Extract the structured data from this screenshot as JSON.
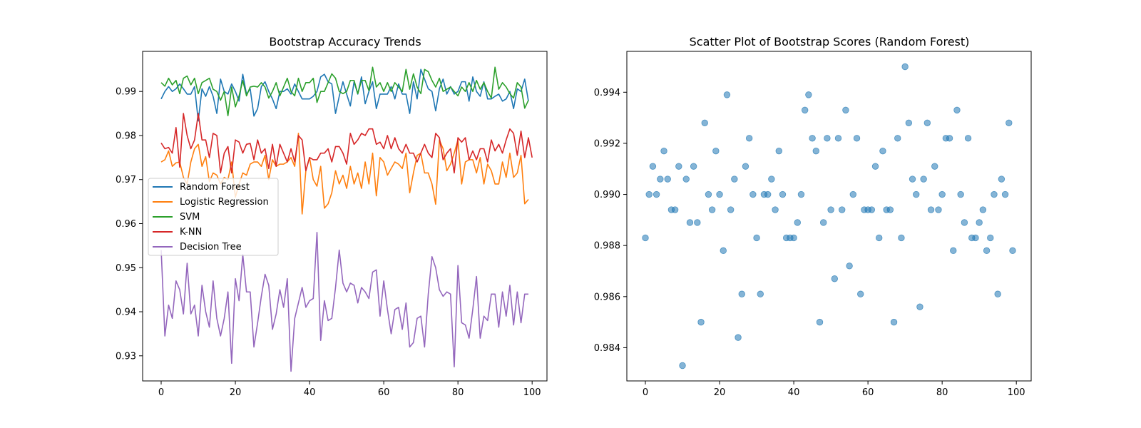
{
  "colors": {
    "Random Forest": "#1f77b4",
    "Logistic Regression": "#ff7f0e",
    "SVM": "#2ca02c",
    "K-NN": "#d62728",
    "Decision Tree": "#9467bd"
  },
  "chart_data": [
    {
      "type": "line",
      "title": "Bootstrap Accuracy Trends",
      "xlabel": "",
      "ylabel": "",
      "xlim": [
        -5,
        104
      ],
      "ylim": [
        0.9243,
        0.9991
      ],
      "xticks": [
        0,
        20,
        40,
        60,
        80,
        100
      ],
      "yticks": [
        0.93,
        0.94,
        0.95,
        0.96,
        0.97,
        0.98,
        0.99
      ],
      "ytick_labels": [
        "0.93",
        "0.94",
        "0.95",
        "0.96",
        "0.97",
        "0.98",
        "0.99"
      ],
      "grid": false,
      "legend": "center-left",
      "series": [
        {
          "name": "Random Forest",
          "values": [
            0.9883,
            0.99,
            0.9911,
            0.99,
            0.9906,
            0.9917,
            0.9906,
            0.9894,
            0.9894,
            0.9911,
            0.9833,
            0.9906,
            0.9889,
            0.9911,
            0.9889,
            0.985,
            0.9928,
            0.99,
            0.9894,
            0.9917,
            0.99,
            0.9878,
            0.9939,
            0.9894,
            0.9906,
            0.9844,
            0.9861,
            0.9911,
            0.9922,
            0.99,
            0.9883,
            0.9861,
            0.99,
            0.99,
            0.9906,
            0.9894,
            0.9917,
            0.99,
            0.9883,
            0.9883,
            0.9883,
            0.9889,
            0.99,
            0.9933,
            0.9939,
            0.9922,
            0.9917,
            0.985,
            0.9889,
            0.9922,
            0.9894,
            0.9867,
            0.9922,
            0.9894,
            0.9933,
            0.9872,
            0.99,
            0.9922,
            0.9861,
            0.9894,
            0.9894,
            0.9894,
            0.9911,
            0.9883,
            0.9917,
            0.9894,
            0.9894,
            0.985,
            0.9922,
            0.9883,
            0.995,
            0.9928,
            0.9906,
            0.99,
            0.9856,
            0.9906,
            0.9928,
            0.9894,
            0.9911,
            0.9894,
            0.99,
            0.9922,
            0.9922,
            0.9878,
            0.9933,
            0.99,
            0.9889,
            0.9922,
            0.9883,
            0.9883,
            0.9889,
            0.9894,
            0.9878,
            0.9883,
            0.99,
            0.9861,
            0.9906,
            0.99,
            0.9928,
            0.9878
          ]
        },
        {
          "name": "Logistic Regression",
          "values": [
            0.974,
            0.9745,
            0.9765,
            0.973,
            0.9738,
            0.974,
            0.9705,
            0.969,
            0.974,
            0.977,
            0.978,
            0.973,
            0.9752,
            0.9695,
            0.9715,
            0.971,
            0.969,
            0.9705,
            0.97,
            0.974,
            0.966,
            0.969,
            0.9715,
            0.971,
            0.9735,
            0.974,
            0.974,
            0.973,
            0.9755,
            0.97,
            0.9745,
            0.973,
            0.9735,
            0.9735,
            0.974,
            0.975,
            0.973,
            0.9805,
            0.9622,
            0.972,
            0.975,
            0.97,
            0.9685,
            0.973,
            0.9635,
            0.9645,
            0.967,
            0.972,
            0.969,
            0.971,
            0.968,
            0.973,
            0.969,
            0.9715,
            0.968,
            0.974,
            0.969,
            0.976,
            0.9663,
            0.975,
            0.974,
            0.971,
            0.9725,
            0.974,
            0.9735,
            0.9725,
            0.976,
            0.967,
            0.9715,
            0.9755,
            0.976,
            0.9715,
            0.9715,
            0.969,
            0.9644,
            0.979,
            0.977,
            0.972,
            0.9735,
            0.976,
            0.979,
            0.969,
            0.974,
            0.9745,
            0.9745,
            0.9715,
            0.975,
            0.969,
            0.9735,
            0.972,
            0.969,
            0.969,
            0.974,
            0.9705,
            0.976,
            0.9705,
            0.9715,
            0.9755,
            0.9645,
            0.9655
          ]
        },
        {
          "name": "SVM",
          "values": [
            0.992,
            0.9912,
            0.993,
            0.9915,
            0.9925,
            0.9895,
            0.993,
            0.9935,
            0.9915,
            0.993,
            0.9895,
            0.992,
            0.9925,
            0.993,
            0.9905,
            0.99,
            0.988,
            0.99,
            0.9845,
            0.991,
            0.9865,
            0.989,
            0.9925,
            0.989,
            0.991,
            0.9912,
            0.991,
            0.992,
            0.991,
            0.9885,
            0.99,
            0.992,
            0.989,
            0.991,
            0.993,
            0.99,
            0.989,
            0.993,
            0.99,
            0.992,
            0.992,
            0.993,
            0.9875,
            0.99,
            0.99,
            0.992,
            0.994,
            0.993,
            0.99,
            0.9895,
            0.99,
            0.9925,
            0.9925,
            0.9895,
            0.9925,
            0.9925,
            0.9902,
            0.9955,
            0.991,
            0.992,
            0.99,
            0.992,
            0.99,
            0.992,
            0.991,
            0.99,
            0.995,
            0.9905,
            0.994,
            0.991,
            0.9895,
            0.995,
            0.9945,
            0.9925,
            0.991,
            0.993,
            0.99,
            0.9905,
            0.991,
            0.99,
            0.989,
            0.991,
            0.99,
            0.992,
            0.99,
            0.9925,
            0.9905,
            0.992,
            0.99,
            0.9885,
            0.9955,
            0.9905,
            0.992,
            0.991,
            0.9895,
            0.9885,
            0.992,
            0.991,
            0.9862,
            0.988
          ]
        },
        {
          "name": "K-NN",
          "values": [
            0.9783,
            0.977,
            0.9773,
            0.976,
            0.9818,
            0.9728,
            0.985,
            0.98,
            0.977,
            0.979,
            0.985,
            0.979,
            0.979,
            0.975,
            0.9805,
            0.98,
            0.9715,
            0.976,
            0.9775,
            0.9715,
            0.979,
            0.9785,
            0.976,
            0.978,
            0.9782,
            0.9745,
            0.979,
            0.976,
            0.977,
            0.9725,
            0.978,
            0.973,
            0.978,
            0.976,
            0.974,
            0.977,
            0.974,
            0.98,
            0.979,
            0.972,
            0.975,
            0.9745,
            0.9745,
            0.976,
            0.976,
            0.977,
            0.974,
            0.9775,
            0.9775,
            0.976,
            0.9735,
            0.9805,
            0.978,
            0.979,
            0.9805,
            0.98,
            0.9815,
            0.9815,
            0.978,
            0.9785,
            0.977,
            0.98,
            0.977,
            0.9795,
            0.977,
            0.976,
            0.978,
            0.976,
            0.976,
            0.974,
            0.976,
            0.978,
            0.976,
            0.975,
            0.9805,
            0.9795,
            0.9745,
            0.976,
            0.977,
            0.9715,
            0.9795,
            0.9785,
            0.9795,
            0.9745,
            0.9765,
            0.9745,
            0.977,
            0.977,
            0.974,
            0.979,
            0.9765,
            0.978,
            0.976,
            0.979,
            0.9815,
            0.9805,
            0.9755,
            0.981,
            0.975,
            0.9795,
            0.975
          ]
        },
        {
          "name": "Decision Tree",
          "values": [
            0.954,
            0.9345,
            0.9415,
            0.9385,
            0.947,
            0.945,
            0.9395,
            0.951,
            0.9395,
            0.9415,
            0.9345,
            0.946,
            0.94,
            0.9365,
            0.947,
            0.9385,
            0.9345,
            0.9385,
            0.9445,
            0.9283,
            0.9475,
            0.9425,
            0.953,
            0.9445,
            0.9445,
            0.932,
            0.9375,
            0.9435,
            0.9485,
            0.946,
            0.936,
            0.9395,
            0.945,
            0.941,
            0.9475,
            0.9265,
            0.9385,
            0.942,
            0.9455,
            0.941,
            0.9425,
            0.943,
            0.958,
            0.9335,
            0.9425,
            0.938,
            0.9385,
            0.9455,
            0.954,
            0.9465,
            0.9445,
            0.9465,
            0.946,
            0.942,
            0.9455,
            0.9445,
            0.943,
            0.949,
            0.9495,
            0.939,
            0.947,
            0.9405,
            0.935,
            0.9405,
            0.941,
            0.936,
            0.942,
            0.932,
            0.933,
            0.9385,
            0.939,
            0.932,
            0.944,
            0.9525,
            0.95,
            0.945,
            0.9435,
            0.9445,
            0.944,
            0.9275,
            0.9505,
            0.9375,
            0.937,
            0.934,
            0.9405,
            0.948,
            0.934,
            0.939,
            0.938,
            0.944,
            0.944,
            0.9365,
            0.9445,
            0.939,
            0.946,
            0.937,
            0.9445,
            0.9375,
            0.944,
            0.944
          ]
        }
      ]
    },
    {
      "type": "scatter",
      "title": "Scatter Plot of Bootstrap Scores (Random Forest)",
      "xlabel": "",
      "ylabel": "",
      "xlim": [
        -5,
        104
      ],
      "ylim": [
        0.9827,
        0.9956
      ],
      "xticks": [
        0,
        20,
        40,
        60,
        80,
        100
      ],
      "yticks": [
        0.984,
        0.986,
        0.988,
        0.99,
        0.992,
        0.994
      ],
      "ytick_labels": [
        "0.984",
        "0.986",
        "0.988",
        "0.990",
        "0.992",
        "0.994"
      ],
      "grid": false,
      "series": [
        {
          "values": [
            0.9883,
            0.99,
            0.9911,
            0.99,
            0.9906,
            0.9917,
            0.9906,
            0.9894,
            0.9894,
            0.9911,
            0.9833,
            0.9906,
            0.9889,
            0.9911,
            0.9889,
            0.985,
            0.9928,
            0.99,
            0.9894,
            0.9917,
            0.99,
            0.9878,
            0.9939,
            0.9894,
            0.9906,
            0.9844,
            0.9861,
            0.9911,
            0.9922,
            0.99,
            0.9883,
            0.9861,
            0.99,
            0.99,
            0.9906,
            0.9894,
            0.9917,
            0.99,
            0.9883,
            0.9883,
            0.9883,
            0.9889,
            0.99,
            0.9933,
            0.9939,
            0.9922,
            0.9917,
            0.985,
            0.9889,
            0.9922,
            0.9894,
            0.9867,
            0.9922,
            0.9894,
            0.9933,
            0.9872,
            0.99,
            0.9922,
            0.9861,
            0.9894,
            0.9894,
            0.9894,
            0.9911,
            0.9883,
            0.9917,
            0.9894,
            0.9894,
            0.985,
            0.9922,
            0.9883,
            0.995,
            0.9928,
            0.9906,
            0.99,
            0.9856,
            0.9906,
            0.9928,
            0.9894,
            0.9911,
            0.9894,
            0.99,
            0.9922,
            0.9922,
            0.9878,
            0.9933,
            0.99,
            0.9889,
            0.9922,
            0.9883,
            0.9883,
            0.9889,
            0.9894,
            0.9878,
            0.9883,
            0.99,
            0.9861,
            0.9906,
            0.99,
            0.9928,
            0.9878
          ]
        }
      ]
    }
  ]
}
